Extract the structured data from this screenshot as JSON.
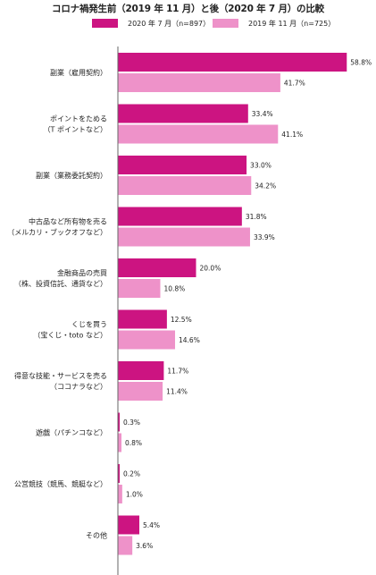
{
  "colors": {
    "series_2020": "#cc1481",
    "series_2019": "#ee92c9",
    "axis": "#666666"
  },
  "chart_data": {
    "type": "bar",
    "orientation": "horizontal",
    "title": "コロナ禍発生前（2019 年 11 月）と後（2020 年 7 月）の比較",
    "xlabel": "",
    "ylabel": "",
    "xlim": [
      0,
      60
    ],
    "grid": false,
    "legend": "top",
    "value_suffix": "%",
    "categories": [
      [
        "副業（雇用契約）"
      ],
      [
        "ポイントをためる",
        "（T ポイントなど）"
      ],
      [
        "副業（業務委託契約）"
      ],
      [
        "中古品など所有物を売る",
        "（メルカリ・ブックオフなど）"
      ],
      [
        "金融商品の売買",
        "（株、投資信託、通貨など）"
      ],
      [
        "くじを買う",
        "（宝くじ・toto など）"
      ],
      [
        "得意な技能・サービスを売る",
        "（ココナラなど）"
      ],
      [
        "遊戯（パチンコなど）"
      ],
      [
        "公営競技（競馬、競艇など）"
      ],
      [
        "その他"
      ]
    ],
    "series": [
      {
        "name": "2020 年 7 月（n=897）",
        "color": "#cc1481",
        "values": [
          58.8,
          33.4,
          33.0,
          31.8,
          20.0,
          12.5,
          11.7,
          0.3,
          0.2,
          5.4
        ]
      },
      {
        "name": "2019 年 11 月（n=725）",
        "color": "#ee92c9",
        "values": [
          41.7,
          41.1,
          34.2,
          33.9,
          10.8,
          14.6,
          11.4,
          0.8,
          1.0,
          3.6
        ]
      }
    ]
  }
}
